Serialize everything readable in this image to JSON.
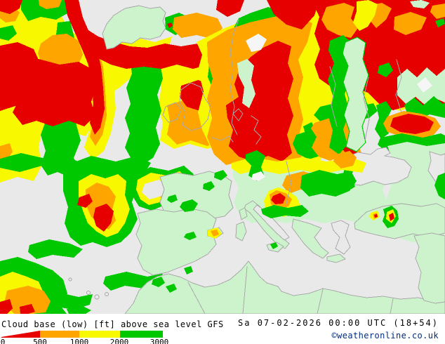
{
  "footer": {
    "title": "Cloud base (low) [ft] above sea level GFS",
    "timestamp": "Sa 07-02-2026 00:00 UTC (18+54)",
    "copyright": "©weatheronline.co.uk"
  },
  "legend": {
    "unit": "ft",
    "ticks": [
      "0",
      "500",
      "1000",
      "2000",
      "3000"
    ],
    "segments": [
      {
        "from": 0,
        "to": 500,
        "color": "#e60000",
        "shape": "wedge"
      },
      {
        "from": 500,
        "to": 1000,
        "color": "#ffa500",
        "shape": "block"
      },
      {
        "from": 1000,
        "to": 2000,
        "color": "#f8f800",
        "shape": "block"
      },
      {
        "from": 2000,
        "to": 3000,
        "color": "#00c800",
        "shape": "block"
      }
    ]
  },
  "palette": {
    "sea": "#e9e9e9",
    "land_clear": "#ccf3cc",
    "coastline": "#a9a9a9",
    "white_patch": "#f6f6f6",
    "green": "#00c800",
    "yellow": "#f8f800",
    "orange": "#ffa500",
    "red": "#e60000",
    "text": "#000000",
    "copyright": "#002d82"
  },
  "chart_data": {
    "type": "heatmap",
    "variable": "Cloud base (low)",
    "units": "ft above sea level",
    "model": "GFS",
    "valid_time": "Sa 07-02-2026 00:00 UTC (18+54)",
    "color_scale": [
      {
        "range": [
          0,
          500
        ],
        "color": "#e60000"
      },
      {
        "range": [
          500,
          1000
        ],
        "color": "#ffa500"
      },
      {
        "range": [
          1000,
          2000
        ],
        "color": "#f8f800"
      },
      {
        "range": [
          2000,
          3000
        ],
        "color": "#00c800"
      }
    ],
    "legend_position": "bottom-left",
    "no_low_cloud_land_color": "#ccf3cc",
    "sea_background_color": "#e9e9e9"
  }
}
